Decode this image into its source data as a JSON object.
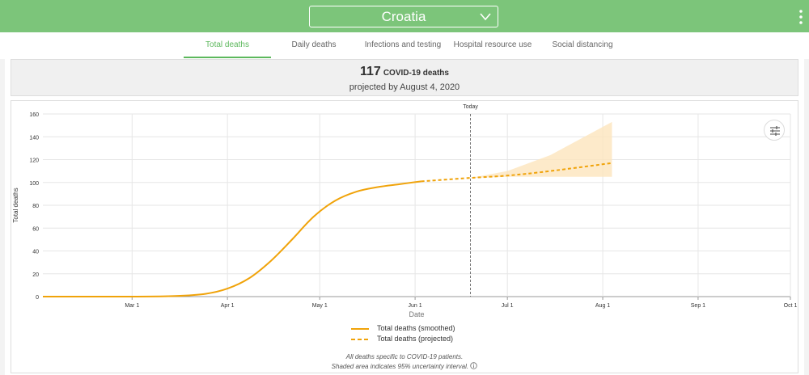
{
  "header": {
    "country": "Croatia",
    "colors": {
      "bar": "#7cc57a",
      "accent": "#5cb85c",
      "series": "#f0a30a",
      "band": "#fde5bd"
    },
    "icons": {
      "dropdown": "chevron-down-icon",
      "menu": "kebab-menu-icon"
    }
  },
  "tabs": [
    {
      "label": "Total deaths",
      "active": true
    },
    {
      "label": "Daily deaths"
    },
    {
      "label": "Infections and testing"
    },
    {
      "label": "Hospital resource use"
    },
    {
      "label": "Social distancing"
    }
  ],
  "summary": {
    "count": "117",
    "metric": "COVID-19 deaths",
    "subtitle": "projected by August 4, 2020"
  },
  "chart_data": {
    "type": "line",
    "xlabel": "Date",
    "ylabel": "Total deaths",
    "ylim": [
      0,
      160
    ],
    "yticks": [
      0,
      20,
      40,
      60,
      80,
      100,
      120,
      140,
      160
    ],
    "xlim": [
      "2020-02-01",
      "2020-10-01"
    ],
    "xticks": [
      {
        "date": "2020-03-01",
        "label": "Mar 1"
      },
      {
        "date": "2020-04-01",
        "label": "Apr 1"
      },
      {
        "date": "2020-05-01",
        "label": "May 1"
      },
      {
        "date": "2020-06-01",
        "label": "Jun 1"
      },
      {
        "date": "2020-07-01",
        "label": "Jul 1"
      },
      {
        "date": "2020-08-01",
        "label": "Aug 1"
      },
      {
        "date": "2020-09-01",
        "label": "Sep 1"
      },
      {
        "date": "2020-10-01",
        "label": "Oct 1"
      }
    ],
    "today": {
      "date": "2020-06-19",
      "label": "Today"
    },
    "grid": true,
    "legend_position": "bottom",
    "series": [
      {
        "name": "Total deaths (smoothed)",
        "style": "solid",
        "x": [
          "2020-02-01",
          "2020-03-01",
          "2020-03-15",
          "2020-03-25",
          "2020-04-01",
          "2020-04-08",
          "2020-04-15",
          "2020-04-22",
          "2020-04-29",
          "2020-05-06",
          "2020-05-13",
          "2020-05-20",
          "2020-05-27",
          "2020-06-03"
        ],
        "y": [
          0,
          0,
          0.5,
          2.5,
          7,
          16,
          31,
          50,
          70,
          84,
          92,
          96,
          98.5,
          101
        ]
      },
      {
        "name": "Total deaths (projected)",
        "style": "dashed",
        "x": [
          "2020-06-03",
          "2020-06-19",
          "2020-07-01",
          "2020-07-15",
          "2020-08-04"
        ],
        "y": [
          101,
          104,
          106,
          110,
          117
        ]
      }
    ],
    "uncertainty_band": {
      "x": [
        "2020-06-19",
        "2020-07-01",
        "2020-07-15",
        "2020-08-04"
      ],
      "lower": [
        104,
        105,
        105,
        105
      ],
      "upper": [
        104,
        110,
        124,
        153
      ]
    }
  },
  "footnotes": {
    "line1": "All deaths specific to COVID-19 patients.",
    "line2": "Shaded area indicates 95% uncertainty interval."
  }
}
